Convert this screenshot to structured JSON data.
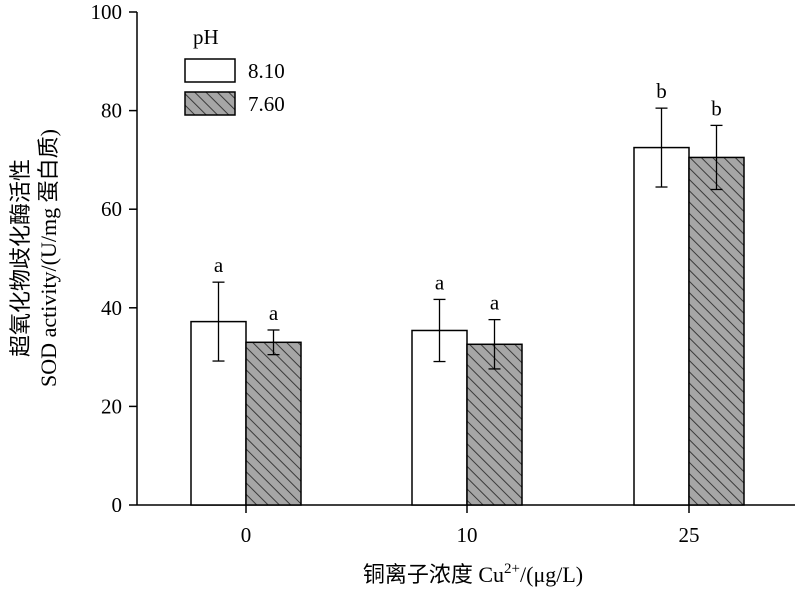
{
  "chart_data": {
    "type": "bar",
    "categories": [
      "0",
      "10",
      "25"
    ],
    "series": [
      {
        "name": "8.10",
        "fill": "#ffffff",
        "values": [
          37.2,
          35.4,
          72.5
        ],
        "errors": [
          8.0,
          6.3,
          8.0
        ],
        "letters": [
          "a",
          "a",
          "b"
        ]
      },
      {
        "name": "7.60",
        "fill": "#a6a6a6",
        "hatched": true,
        "values": [
          33.0,
          32.6,
          70.5
        ],
        "errors": [
          2.5,
          5.0,
          6.5
        ],
        "letters": [
          "a",
          "a",
          "b"
        ]
      }
    ],
    "legend_title": "pH",
    "legend_position": "top-left",
    "ylabel_line1": "超氧化物歧化酶活性",
    "ylabel_line2": "SOD activity/(U/mg 蛋白质)",
    "xlabel": "铜离子浓度 Cu2+/(μg/L)",
    "ylim": [
      0,
      100
    ],
    "yticks": [
      0,
      20,
      40,
      60,
      80,
      100
    ],
    "grid": false
  }
}
